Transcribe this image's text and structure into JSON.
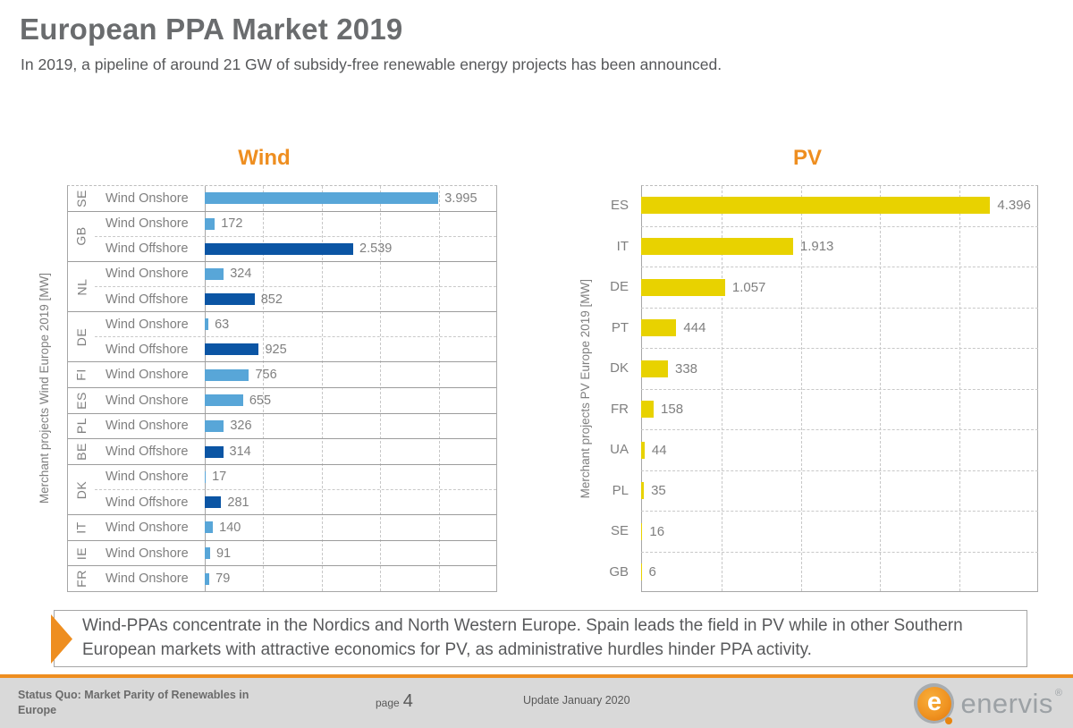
{
  "header": {
    "title": "European PPA Market 2019",
    "subtitle": "In 2019, a pipeline of around 21 GW of subsidy-free renewable energy projects has been announced."
  },
  "colors": {
    "accent_orange": "#EE8E20",
    "wind_onshore": "#58A6D8",
    "wind_offshore": "#0B55A4",
    "pv_yellow": "#E8D200",
    "chart_text_gray": "#7F7F7F"
  },
  "chart_data": [
    {
      "id": "wind",
      "type": "bar",
      "orientation": "horizontal",
      "title": "Wind",
      "axis_label": "Merchant projects Wind Europe 2019 [MW]",
      "xlim": [
        0,
        5000
      ],
      "gridline_step": 1000,
      "grid": true,
      "series_colors": {
        "Wind Onshore": "#58A6D8",
        "Wind Offshore": "#0B55A4"
      },
      "groups": [
        {
          "country": "SE",
          "rows": [
            {
              "series": "Wind Onshore",
              "value": 3995,
              "label": "3.995"
            }
          ]
        },
        {
          "country": "GB",
          "rows": [
            {
              "series": "Wind Onshore",
              "value": 172,
              "label": "172"
            },
            {
              "series": "Wind Offshore",
              "value": 2539,
              "label": "2.539"
            }
          ]
        },
        {
          "country": "NL",
          "rows": [
            {
              "series": "Wind Onshore",
              "value": 324,
              "label": "324"
            },
            {
              "series": "Wind Offshore",
              "value": 852,
              "label": "852"
            }
          ]
        },
        {
          "country": "DE",
          "rows": [
            {
              "series": "Wind Onshore",
              "value": 63,
              "label": "63"
            },
            {
              "series": "Wind Offshore",
              "value": 925,
              "label": "925"
            }
          ]
        },
        {
          "country": "FI",
          "rows": [
            {
              "series": "Wind Onshore",
              "value": 756,
              "label": "756"
            }
          ]
        },
        {
          "country": "ES",
          "rows": [
            {
              "series": "Wind Onshore",
              "value": 655,
              "label": "655"
            }
          ]
        },
        {
          "country": "PL",
          "rows": [
            {
              "series": "Wind Onshore",
              "value": 326,
              "label": "326"
            }
          ]
        },
        {
          "country": "BE",
          "rows": [
            {
              "series": "Wind Offshore",
              "value": 314,
              "label": "314"
            }
          ]
        },
        {
          "country": "DK",
          "rows": [
            {
              "series": "Wind Onshore",
              "value": 17,
              "label": "17"
            },
            {
              "series": "Wind Offshore",
              "value": 281,
              "label": "281"
            }
          ]
        },
        {
          "country": "IT",
          "rows": [
            {
              "series": "Wind Onshore",
              "value": 140,
              "label": "140"
            }
          ]
        },
        {
          "country": "IE",
          "rows": [
            {
              "series": "Wind Onshore",
              "value": 91,
              "label": "91"
            }
          ]
        },
        {
          "country": "FR",
          "rows": [
            {
              "series": "Wind Onshore",
              "value": 79,
              "label": "79"
            }
          ]
        }
      ]
    },
    {
      "id": "pv",
      "type": "bar",
      "orientation": "horizontal",
      "title": "PV",
      "axis_label": "Merchant projects PV Europe 2019 [MW]",
      "xlim": [
        0,
        5000
      ],
      "gridline_step": 1000,
      "grid": true,
      "bar_color": "#E8D200",
      "categories": [
        "ES",
        "IT",
        "DE",
        "PT",
        "DK",
        "FR",
        "UA",
        "PL",
        "SE",
        "GB"
      ],
      "values": [
        4396,
        1913,
        1057,
        444,
        338,
        158,
        44,
        35,
        16,
        6
      ],
      "labels": [
        "4.396",
        "1.913",
        "1.057",
        "444",
        "338",
        "158",
        "44",
        "35",
        "16",
        "6"
      ]
    }
  ],
  "callout": {
    "text": "Wind-PPAs concentrate in the Nordics and North Western Europe. Spain leads the field in PV while in other Southern European markets with attractive economics for PV, as administrative hurdles hinder PPA activity."
  },
  "footer": {
    "left_text": "Status Quo: Market Parity of Renewables in Europe",
    "page_label": "page",
    "page_number": "4",
    "update_text": "Update January 2020",
    "logo_text": "enervis",
    "logo_reg": "®",
    "logo_letter": "e"
  }
}
